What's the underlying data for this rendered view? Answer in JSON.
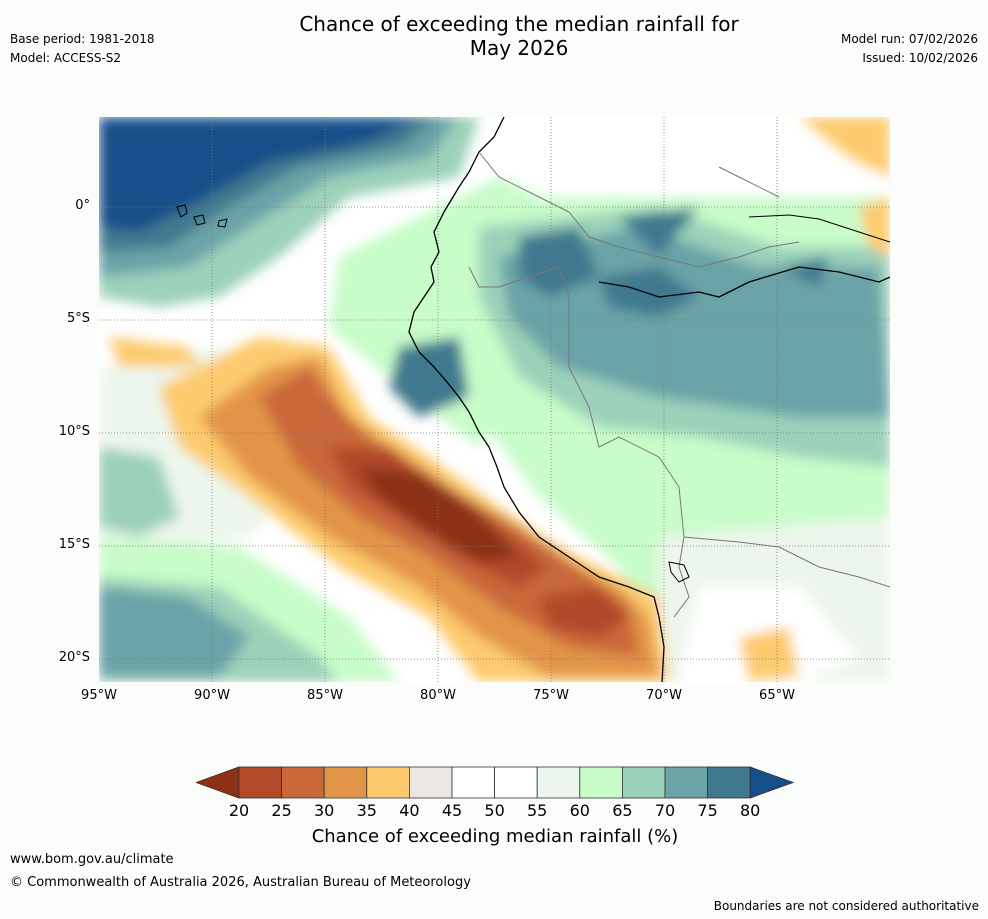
{
  "header": {
    "title_line1": "Chance of exceeding the median rainfall for",
    "title_line2": "May 2026",
    "base_period": "Base period: 1981-2018",
    "model": "Model: ACCESS-S2",
    "model_run": "Model run: 07/02/2026",
    "issued": "Issued: 10/02/2026"
  },
  "map": {
    "lat_labels": [
      "0°",
      "5°S",
      "10°S",
      "15°S",
      "20°S"
    ],
    "lon_labels": [
      "95°W",
      "90°W",
      "85°W",
      "80°W",
      "75°W",
      "70°W",
      "65°W"
    ]
  },
  "colorbar": {
    "ticks": [
      "20",
      "25",
      "30",
      "35",
      "40",
      "45",
      "50",
      "55",
      "60",
      "65",
      "70",
      "75",
      "80"
    ],
    "label": "Chance of exceeding median rainfall (%)",
    "colors": [
      "#8c3016",
      "#b04a29",
      "#c9683a",
      "#e29549",
      "#fdcb6e",
      "#ede7e3",
      "#ffffff",
      "#ffffff",
      "#edf6ec",
      "#c8fcc9",
      "#9bd1b9",
      "#6ba3a7",
      "#40798f",
      "#154f89"
    ]
  },
  "footer": {
    "website": "www.bom.gov.au/climate",
    "copyright": "© Commonwealth of Australia 2026, Australian Bureau of Meteorology",
    "disclaimer": "Boundaries are not considered authoritative"
  }
}
